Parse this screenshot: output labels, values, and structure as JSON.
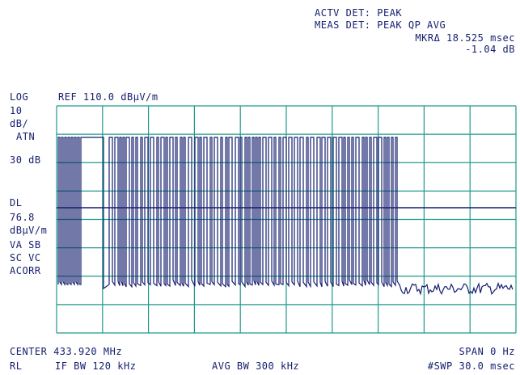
{
  "header": {
    "actv_det": "ACTV DET: PEAK",
    "meas_det": "MEAS DET: PEAK QP AVG",
    "marker_label": "MKRΔ 18.525 msec",
    "marker_value": "-1.04 dB"
  },
  "scale": {
    "mode": "LOG",
    "ref_level": "REF 110.0 dBµV/m"
  },
  "side_panel": {
    "div_value": "10",
    "div_unit": "dB/",
    "atn_label": "ATN",
    "atn_value": "30 dB",
    "dl_label": "DL",
    "dl_value": "76.8",
    "dl_unit": "dBµV/m",
    "va_sb": "VA SB",
    "sc_vc": "SC VC",
    "acorr": "ACORR"
  },
  "footer": {
    "center": "CENTER 433.920 MHz",
    "span": "SPAN 0 Hz",
    "rl": "RL",
    "if_bw": "IF BW 120 kHz",
    "avg_bw": "AVG BW 300 kHz",
    "sweep": "#SWP 30.0 msec"
  },
  "colors": {
    "graticule": "#1e9a8a",
    "trace": "#141e6e",
    "text": "#141e6e",
    "background": "#ffffff"
  }
}
